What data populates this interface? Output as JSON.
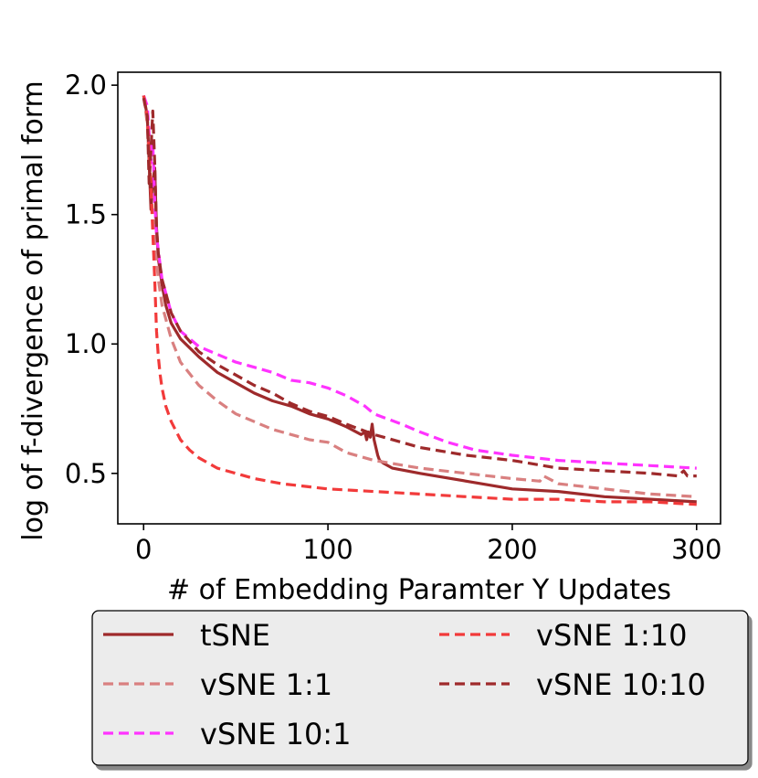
{
  "chart_data": {
    "type": "line",
    "title": "",
    "xlabel": "# of Embedding Paramter Y Updates",
    "ylabel": "log of f-divergence of primal form",
    "xlim": [
      -14,
      313
    ],
    "ylim": [
      0.305,
      2.05
    ],
    "xticks": [
      0,
      100,
      200,
      300
    ],
    "xtick_labels": [
      "0",
      "100",
      "200",
      "300"
    ],
    "yticks": [
      0.5,
      1.0,
      1.5,
      2.0
    ],
    "ytick_labels": [
      "0.5",
      "1.0",
      "1.5",
      "2.0"
    ],
    "grid": false,
    "legend_position": "below",
    "series": [
      {
        "name": "tSNE",
        "color": "#9e2a2b",
        "dash": "solid",
        "x": [
          0,
          2,
          3,
          4,
          5,
          6,
          7,
          8,
          10,
          12,
          15,
          20,
          30,
          40,
          50,
          60,
          70,
          80,
          90,
          100,
          110,
          118,
          120,
          121,
          122,
          123,
          124,
          125,
          126,
          127,
          128,
          130,
          135,
          150,
          175,
          200,
          225,
          250,
          275,
          300
        ],
        "y": [
          1.96,
          1.88,
          1.7,
          1.52,
          1.62,
          1.68,
          1.45,
          1.33,
          1.23,
          1.15,
          1.08,
          1.02,
          0.95,
          0.89,
          0.85,
          0.81,
          0.78,
          0.76,
          0.73,
          0.71,
          0.68,
          0.65,
          0.66,
          0.63,
          0.66,
          0.64,
          0.69,
          0.63,
          0.6,
          0.57,
          0.55,
          0.54,
          0.52,
          0.5,
          0.47,
          0.44,
          0.43,
          0.41,
          0.4,
          0.39
        ]
      },
      {
        "name": "vSNE 1:1",
        "color": "#d98080",
        "dash": "dashed",
        "x": [
          0,
          2,
          4,
          6,
          8,
          10,
          15,
          20,
          30,
          40,
          50,
          60,
          70,
          80,
          90,
          100,
          110,
          125,
          150,
          175,
          200,
          215,
          217,
          225,
          250,
          275,
          300
        ],
        "y": [
          1.96,
          1.85,
          1.6,
          1.4,
          1.25,
          1.15,
          1.02,
          0.93,
          0.84,
          0.78,
          0.73,
          0.7,
          0.67,
          0.65,
          0.63,
          0.62,
          0.58,
          0.55,
          0.52,
          0.5,
          0.48,
          0.47,
          0.49,
          0.46,
          0.44,
          0.42,
          0.41
        ]
      },
      {
        "name": "vSNE 10:1",
        "color": "#ff33ff",
        "dash": "dashed",
        "x": [
          0,
          2,
          4,
          5,
          6,
          7,
          8,
          10,
          15,
          20,
          30,
          40,
          50,
          60,
          70,
          80,
          90,
          100,
          110,
          120,
          125,
          140,
          150,
          165,
          180,
          200,
          225,
          250,
          275,
          300
        ],
        "y": [
          1.96,
          1.92,
          1.7,
          1.78,
          1.55,
          1.42,
          1.36,
          1.25,
          1.12,
          1.05,
          0.99,
          0.96,
          0.93,
          0.91,
          0.89,
          0.86,
          0.85,
          0.83,
          0.8,
          0.76,
          0.73,
          0.69,
          0.66,
          0.62,
          0.59,
          0.57,
          0.55,
          0.54,
          0.53,
          0.52
        ]
      },
      {
        "name": "vSNE 1:10",
        "color": "#f23a3a",
        "dash": "dashed",
        "x": [
          0,
          2,
          4,
          6,
          7,
          8,
          9,
          10,
          12,
          15,
          20,
          25,
          30,
          40,
          50,
          60,
          75,
          100,
          125,
          150,
          175,
          200,
          225,
          250,
          275,
          300
        ],
        "y": [
          1.96,
          1.88,
          1.6,
          1.25,
          1.05,
          0.95,
          0.88,
          0.83,
          0.76,
          0.7,
          0.63,
          0.59,
          0.56,
          0.52,
          0.5,
          0.48,
          0.46,
          0.44,
          0.43,
          0.42,
          0.41,
          0.4,
          0.4,
          0.39,
          0.39,
          0.38
        ]
      },
      {
        "name": "vSNE 10:10",
        "color": "#9e2a2b",
        "dash": "dashed",
        "x": [
          0,
          2,
          3,
          4,
          5,
          6,
          7,
          8,
          10,
          15,
          20,
          30,
          40,
          50,
          60,
          70,
          80,
          90,
          100,
          110,
          125,
          150,
          175,
          200,
          225,
          250,
          275,
          290,
          293,
          295,
          300
        ],
        "y": [
          1.95,
          1.88,
          1.62,
          1.75,
          1.9,
          1.7,
          1.45,
          1.35,
          1.25,
          1.12,
          1.05,
          0.97,
          0.92,
          0.88,
          0.84,
          0.81,
          0.77,
          0.74,
          0.72,
          0.69,
          0.65,
          0.6,
          0.57,
          0.55,
          0.52,
          0.51,
          0.5,
          0.49,
          0.51,
          0.49,
          0.49
        ]
      }
    ]
  },
  "legend": {
    "items": [
      {
        "label": "tSNE",
        "series": 0
      },
      {
        "label": "vSNE 1:1",
        "series": 1
      },
      {
        "label": "vSNE 10:1",
        "series": 2
      },
      {
        "label": "vSNE 1:10",
        "series": 3
      },
      {
        "label": "vSNE 10:10",
        "series": 4
      }
    ]
  }
}
